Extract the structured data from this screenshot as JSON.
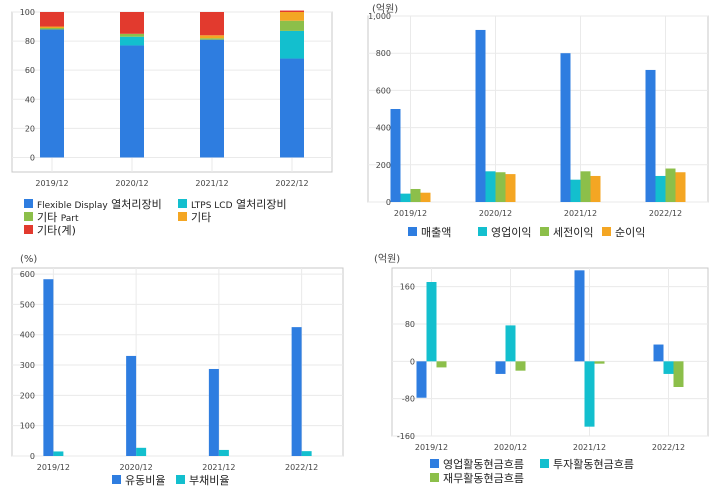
{
  "colors": {
    "blue": "#2e7de0",
    "cyan": "#13bfce",
    "green": "#8cbf4a",
    "orange": "#f4a623",
    "red": "#e23a2e",
    "plot_border": "#c8c8c8",
    "grid": "#eaeaea"
  },
  "chart_data": [
    {
      "type": "bar",
      "stacked": true,
      "unit": "",
      "categories": [
        "2019/12",
        "2020/12",
        "2021/12",
        "2022/12"
      ],
      "ylim": [
        -10,
        100
      ],
      "yticks": [
        0,
        20,
        40,
        60,
        80,
        100
      ],
      "grid": true,
      "legend_position": "bottom",
      "series": [
        {
          "name": "Flexible Display 열처리장비",
          "values": [
            88,
            77,
            81,
            68
          ],
          "color": "#2e7de0"
        },
        {
          "name": "LTPS LCD 열처리장비",
          "values": [
            0,
            6,
            0,
            19
          ],
          "color": "#13bfce"
        },
        {
          "name": "기타 Part",
          "values": [
            1,
            2,
            1,
            7
          ],
          "color": "#8cbf4a"
        },
        {
          "name": "기타",
          "values": [
            1,
            0,
            2,
            6
          ],
          "color": "#f4a623"
        },
        {
          "name": "기타(계)",
          "values": [
            10,
            15,
            16,
            1
          ],
          "color": "#e23a2e"
        }
      ]
    },
    {
      "type": "bar",
      "unit": "(억원)",
      "categories": [
        "2019/12",
        "2020/12",
        "2021/12",
        "2022/12"
      ],
      "ylim": [
        0,
        1000
      ],
      "yticks": [
        0,
        200,
        400,
        600,
        800,
        1000
      ],
      "ytick_labels": [
        "0",
        "200",
        "400",
        "600",
        "800",
        "1,000"
      ],
      "grid": true,
      "legend_position": "bottom",
      "series": [
        {
          "name": "매출액",
          "values": [
            500,
            925,
            800,
            710
          ],
          "color": "#2e7de0"
        },
        {
          "name": "영업이익",
          "values": [
            45,
            165,
            120,
            140
          ],
          "color": "#13bfce"
        },
        {
          "name": "세전이익",
          "values": [
            70,
            160,
            165,
            180
          ],
          "color": "#8cbf4a"
        },
        {
          "name": "순이익",
          "values": [
            50,
            150,
            140,
            160
          ],
          "color": "#f4a623"
        }
      ]
    },
    {
      "type": "bar",
      "unit": "(%)",
      "categories": [
        "2019/12",
        "2020/12",
        "2021/12",
        "2022/12"
      ],
      "ylim": [
        0,
        620
      ],
      "yticks": [
        0,
        100,
        200,
        300,
        400,
        500,
        600
      ],
      "grid": true,
      "legend_position": "bottom",
      "series": [
        {
          "name": "유동비율",
          "values": [
            583,
            330,
            287,
            425
          ],
          "color": "#2e7de0"
        },
        {
          "name": "부채비율",
          "values": [
            15,
            27,
            20,
            16
          ],
          "color": "#13bfce"
        }
      ]
    },
    {
      "type": "bar",
      "unit": "(억원)",
      "categories": [
        "2019/12",
        "2020/12",
        "2021/12",
        "2022/12"
      ],
      "ylim": [
        -160,
        200
      ],
      "yticks": [
        -160,
        -80,
        0,
        80,
        160
      ],
      "grid": true,
      "legend_position": "bottom",
      "series": [
        {
          "name": "영업활동현금흐름",
          "values": [
            -78,
            -27,
            195,
            36
          ],
          "color": "#2e7de0"
        },
        {
          "name": "투자활동현금흐름",
          "values": [
            170,
            77,
            -140,
            -27
          ],
          "color": "#13bfce"
        },
        {
          "name": "재무활동현금흐름",
          "values": [
            -13,
            -20,
            -5,
            -55
          ],
          "color": "#8cbf4a"
        }
      ]
    }
  ]
}
